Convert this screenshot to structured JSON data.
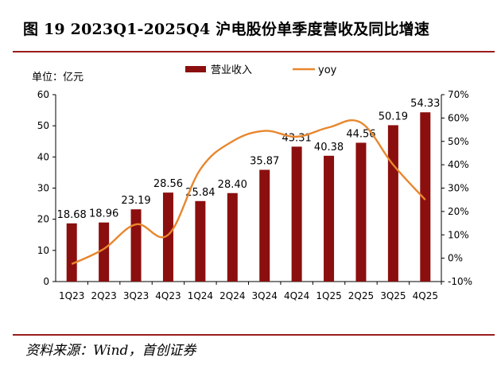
{
  "figure": {
    "title": "图 19 2023Q1-2025Q4 沪电股份单季度营收及同比增速",
    "unit": "单位：亿元",
    "source": "资料来源：Wind，首创证券"
  },
  "colors": {
    "bar": "#8b0f0f",
    "line": "#e8862d",
    "rule": "#9b1c1c"
  },
  "chart_data": {
    "type": "bar",
    "categories": [
      "1Q23",
      "2Q23",
      "3Q23",
      "4Q23",
      "1Q24",
      "2Q24",
      "3Q24",
      "4Q24",
      "1Q25",
      "2Q25",
      "3Q25",
      "4Q25"
    ],
    "series": [
      {
        "name": "营业收入",
        "type": "bar",
        "axis": "left",
        "values": [
          18.68,
          18.96,
          23.19,
          28.56,
          25.84,
          28.4,
          35.87,
          43.31,
          40.38,
          44.56,
          50.19,
          54.33
        ],
        "labels": [
          "18.68",
          "18.96",
          "23.19",
          "28.56",
          "25.84",
          "28.40",
          "35.87",
          "43.31",
          "40.38",
          "44.56",
          "50.19",
          "54.33"
        ]
      },
      {
        "name": "yoy",
        "type": "line",
        "axis": "right",
        "smooth": true,
        "values": [
          -0.025,
          0.04,
          0.145,
          0.1,
          0.38,
          0.5,
          0.545,
          0.52,
          0.56,
          0.58,
          0.4,
          0.25
        ]
      }
    ],
    "y_left": {
      "min": 0,
      "max": 60,
      "ticks": [
        "0",
        "10",
        "20",
        "30",
        "40",
        "50",
        "60"
      ]
    },
    "y_right": {
      "min": -0.1,
      "max": 0.7,
      "ticks": [
        "-10%",
        "0%",
        "10%",
        "20%",
        "30%",
        "40%",
        "50%",
        "60%",
        "70%"
      ]
    },
    "legend_position": "top"
  }
}
